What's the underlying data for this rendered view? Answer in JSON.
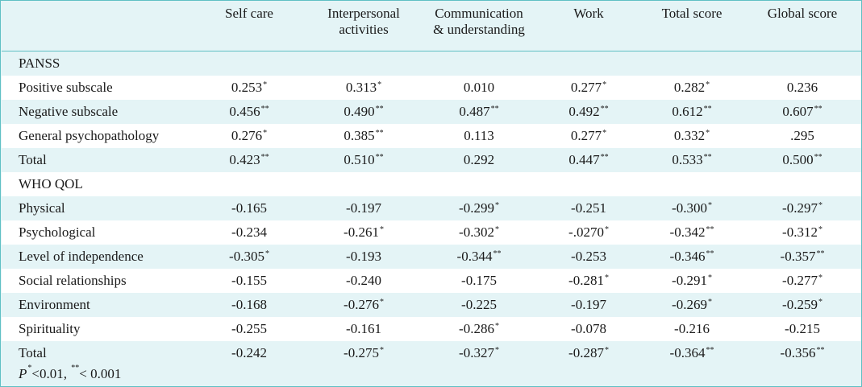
{
  "columns": [
    "",
    "Self care",
    "Interpersonal activities",
    "Communication & understanding",
    "Work",
    "Total score",
    "Global score"
  ],
  "column_lines": [
    [
      ""
    ],
    [
      "Self care"
    ],
    [
      "Interpersonal",
      "activities"
    ],
    [
      "Communication",
      "& understanding"
    ],
    [
      "Work"
    ],
    [
      "Total score"
    ],
    [
      "Global score"
    ]
  ],
  "sections": [
    {
      "title": "PANSS",
      "rows": [
        {
          "label": "Positive subscale",
          "values": [
            [
              "0.253",
              "*"
            ],
            [
              "0.313",
              "*"
            ],
            [
              "0.010",
              ""
            ],
            [
              "0.277",
              "*"
            ],
            [
              "0.282",
              "*"
            ],
            [
              "0.236",
              ""
            ]
          ]
        },
        {
          "label": "Negative subscale",
          "values": [
            [
              "0.456",
              "**"
            ],
            [
              "0.490",
              "**"
            ],
            [
              "0.487",
              "**"
            ],
            [
              "0.492",
              "**"
            ],
            [
              "0.612",
              "**"
            ],
            [
              "0.607",
              "**"
            ]
          ]
        },
        {
          "label": "General psychopathology",
          "values": [
            [
              "0.276",
              "*"
            ],
            [
              "0.385",
              "**"
            ],
            [
              "0.113",
              ""
            ],
            [
              "0.277",
              "*"
            ],
            [
              "0.332",
              "*"
            ],
            [
              ".295",
              ""
            ]
          ]
        },
        {
          "label": "Total",
          "values": [
            [
              "0.423",
              "**"
            ],
            [
              "0.510",
              "**"
            ],
            [
              "0.292",
              ""
            ],
            [
              "0.447",
              "**"
            ],
            [
              "0.533",
              "**"
            ],
            [
              "0.500",
              "**"
            ]
          ]
        }
      ]
    },
    {
      "title": "WHO QOL",
      "rows": [
        {
          "label": "Physical",
          "values": [
            [
              "-0.165",
              ""
            ],
            [
              "-0.197",
              ""
            ],
            [
              "-0.299",
              "*"
            ],
            [
              "-0.251",
              ""
            ],
            [
              "-0.300",
              "*"
            ],
            [
              "-0.297",
              "*"
            ]
          ]
        },
        {
          "label": "Psychological",
          "values": [
            [
              "-0.234",
              ""
            ],
            [
              "-0.261",
              "*"
            ],
            [
              "-0.302",
              "*"
            ],
            [
              "-.0270",
              "*"
            ],
            [
              "-0.342",
              "**"
            ],
            [
              "-0.312",
              "*"
            ]
          ]
        },
        {
          "label": "Level of independence",
          "values": [
            [
              "-0.305",
              "*"
            ],
            [
              "-0.193",
              ""
            ],
            [
              "-0.344",
              "**"
            ],
            [
              "-0.253",
              ""
            ],
            [
              "-0.346",
              "**"
            ],
            [
              "-0.357",
              "**"
            ]
          ]
        },
        {
          "label": "Social relationships",
          "values": [
            [
              "-0.155",
              ""
            ],
            [
              "-0.240",
              ""
            ],
            [
              "-0.175",
              ""
            ],
            [
              "-0.281",
              "*"
            ],
            [
              "-0.291",
              "*"
            ],
            [
              "-0.277",
              "*"
            ]
          ]
        },
        {
          "label": "Environment",
          "values": [
            [
              "-0.168",
              ""
            ],
            [
              "-0.276",
              "*"
            ],
            [
              "-0.225",
              ""
            ],
            [
              "-0.197",
              ""
            ],
            [
              "-0.269",
              "*"
            ],
            [
              "-0.259",
              "*"
            ]
          ]
        },
        {
          "label": "Spirituality",
          "values": [
            [
              "-0.255",
              ""
            ],
            [
              "-0.161",
              ""
            ],
            [
              "-0.286",
              "*"
            ],
            [
              "-0.078",
              ""
            ],
            [
              "-0.216",
              ""
            ],
            [
              "-0.215",
              ""
            ]
          ]
        },
        {
          "label": "Total",
          "values": [
            [
              "-0.242",
              ""
            ],
            [
              "-0.275",
              "*"
            ],
            [
              "-0.327",
              "*"
            ],
            [
              "-0.287",
              "*"
            ],
            [
              "-0.364",
              "**"
            ],
            [
              "-0.356",
              "**"
            ]
          ]
        }
      ]
    }
  ],
  "footnote": {
    "p_letter": "P",
    "sup1": "*",
    "text1": "<0.01, ",
    "sup2": "**",
    "text2": "< 0.001"
  },
  "colors": {
    "header_bg": "#e4f4f6",
    "row_alt_bg": "#ffffff",
    "border": "#5fc0c4"
  }
}
